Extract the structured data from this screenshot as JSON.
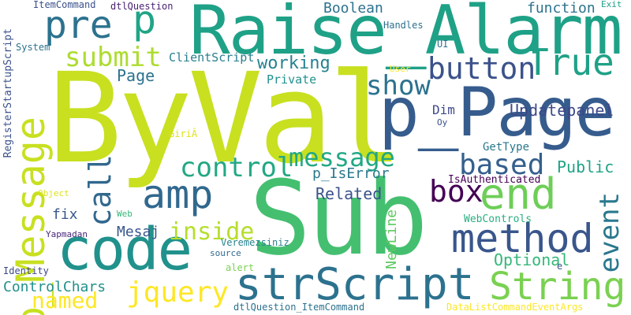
{
  "words": [
    {
      "text": "ByVal",
      "color": "#c8e020"
    },
    {
      "text": "Sub",
      "color": "#44bf70"
    },
    {
      "text": "Raise_Alarm",
      "color": "#1fa187"
    },
    {
      "text": "p_Page",
      "color": "#365c8d"
    },
    {
      "text": "code",
      "color": "#21918c"
    },
    {
      "text": "strScript",
      "color": "#2c728e"
    },
    {
      "text": "amp",
      "color": "#31688e"
    },
    {
      "text": "end",
      "color": "#6ece58"
    },
    {
      "text": "method",
      "color": "#39568c"
    },
    {
      "text": "p_Message",
      "color": "#c8e020"
    },
    {
      "text": "String",
      "color": "#7ad151"
    },
    {
      "text": "True",
      "color": "#1fa187"
    },
    {
      "text": "pre",
      "color": "#2c728e"
    },
    {
      "text": "p",
      "color": "#20a486"
    },
    {
      "text": "button",
      "color": "#3b528b"
    },
    {
      "text": "submit",
      "color": "#addc30"
    },
    {
      "text": "control",
      "color": "#22a884"
    },
    {
      "text": "message",
      "color": "#22a884"
    },
    {
      "text": "based",
      "color": "#355f8d"
    },
    {
      "text": "box",
      "color": "#440154"
    },
    {
      "text": "show",
      "color": "#2c728e"
    },
    {
      "text": "call",
      "color": "#31688e"
    },
    {
      "text": "event",
      "color": "#2a788e"
    },
    {
      "text": "jquery",
      "color": "#fde725"
    },
    {
      "text": "named",
      "color": "#fde725"
    },
    {
      "text": "inside",
      "color": "#b5de2b"
    },
    {
      "text": "working",
      "color": "#26828e"
    },
    {
      "text": "Updatepanel",
      "color": "#3e4989"
    },
    {
      "text": "Boolean",
      "color": "#2c728e"
    },
    {
      "text": "function",
      "color": "#2c728e"
    },
    {
      "text": "Page",
      "color": "#2c728e"
    },
    {
      "text": "Related",
      "color": "#3b528b"
    },
    {
      "text": "Public",
      "color": "#20a386"
    },
    {
      "text": "Optional",
      "color": "#35b779"
    },
    {
      "text": "p_IsError",
      "color": "#2a788e"
    },
    {
      "text": "Dim",
      "color": "#3e4989"
    },
    {
      "text": "fix",
      "color": "#39568c"
    },
    {
      "text": "Mesaj",
      "color": "#39568c"
    },
    {
      "text": "NewLine",
      "color": "#5ec962"
    },
    {
      "text": "ControlChars",
      "color": "#21918c"
    },
    {
      "text": "ClientScript",
      "color": "#277f8e"
    },
    {
      "text": "Private",
      "color": "#21918c"
    },
    {
      "text": "GetType",
      "color": "#2a788e"
    },
    {
      "text": "IsAuthenticated",
      "color": "#440154"
    },
    {
      "text": "WebControls",
      "color": "#29af7f"
    },
    {
      "text": "RegisterStartupScript",
      "color": "#3b528b"
    },
    {
      "text": "ItemCommand",
      "color": "#3b528b"
    },
    {
      "text": "dtlQuestion",
      "color": "#481f70"
    },
    {
      "text": "Handles",
      "color": "#2c728e"
    },
    {
      "text": "Exit",
      "color": "#1fa187"
    },
    {
      "text": "System",
      "color": "#2c728e"
    },
    {
      "text": "UI",
      "color": "#2c728e"
    },
    {
      "text": "User",
      "color": "#fde725"
    },
    {
      "text": "Oy",
      "color": "#3b528b"
    },
    {
      "text": "GiriÂ",
      "color": "#dde318"
    },
    {
      "text": "Object",
      "color": "#dde318"
    },
    {
      "text": "Web",
      "color": "#35b779"
    },
    {
      "text": "Yapmadan",
      "color": "#482878"
    },
    {
      "text": "Veremezsiniz",
      "color": "#26828e"
    },
    {
      "text": "source",
      "color": "#31688e"
    },
    {
      "text": "alert",
      "color": "#7ad151"
    },
    {
      "text": "Identity",
      "color": "#3e4989"
    },
    {
      "text": "dtlQuestion_ItemCommand",
      "color": "#2c728e"
    },
    {
      "text": "DataListCommandEventArgs",
      "color": "#fde725"
    },
    {
      "text": "e",
      "color": "#3b528b"
    }
  ]
}
